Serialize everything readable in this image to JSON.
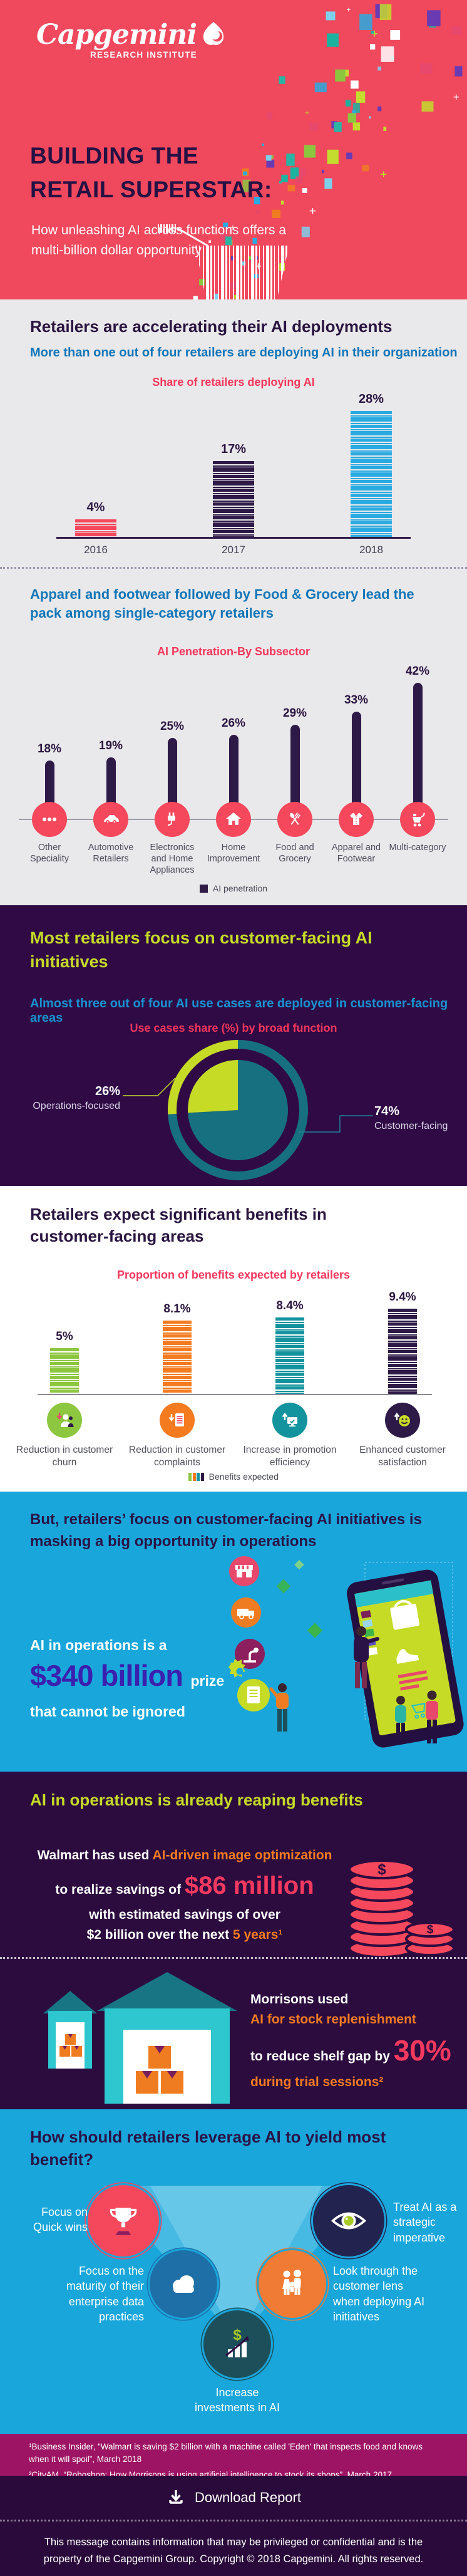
{
  "header": {
    "logo_brand": "Capgemini",
    "logo_sub": "RESEARCH INSTITUTE",
    "title_line1": "BUILDING THE",
    "title_line2": "RETAIL SUPERSTAR:",
    "subtitle": "How unleashing AI across functions offers a multi-billion dollar opportunity"
  },
  "section_deployments": {
    "title": "Retailers are accelerating their AI deployments",
    "subtitle": "More than one out of four retailers are deploying AI in their organization"
  },
  "section_subsector": {
    "title": "Apparel and footwear followed by Food & Grocery lead the pack among single-category retailers"
  },
  "section_focus": {
    "title": "Most retailers focus on customer-facing AI initiatives",
    "subtitle": "Almost three out of four AI use cases are deployed in customer-facing areas"
  },
  "section_benefits": {
    "title": "Retailers expect significant benefits in customer-facing areas"
  },
  "section_opportunity": {
    "title": "But, retailers’ focus on customer-facing AI initiatives is masking a big opportunity in operations",
    "line1": "AI in operations is a",
    "amount": "$340 billion",
    "amount_suffix": "prize",
    "line3": "that cannot be ignored"
  },
  "section_reaping": {
    "title": "AI in operations is already reaping benefits",
    "walmart": {
      "line1_white": "Walmart has used ",
      "line1_orange": "AI-driven image optimization",
      "line2_white": "to realize savings of ",
      "line2_big": "$86 million",
      "line3": "with estimated savings of over",
      "line4_white": "$2 billion over the next ",
      "line4_orange": "5 years¹"
    },
    "morrisons": {
      "line1": "Morrisons used",
      "line2": "AI for stock replenishment",
      "line3_white": "to reduce shelf gap by ",
      "line3_big": "30%",
      "line4": "during trial sessions²"
    }
  },
  "section_leverage": {
    "title": "How should retailers leverage AI to yield most benefit?",
    "items": [
      {
        "label": "Focus on Quick wins",
        "icon": "trophy-icon"
      },
      {
        "label": "Treat AI as a strategic imperative",
        "icon": "eye-icon"
      },
      {
        "label": "Focus on the maturity of their enterprise data practices",
        "icon": "cloud-icon"
      },
      {
        "label": "Look through the customer lens when deploying AI initiatives",
        "icon": "family-icon"
      },
      {
        "label": "Increase investments in AI",
        "icon": "investment-growth-icon"
      }
    ]
  },
  "footnotes": [
    "¹Business Insider, “Walmart is saving $2 billion with a machine called 'Eden' that inspects food and knows when it will spoil”, March 2018",
    "²CityAM, “Roboshop: How Morrisons is using artificial intelligence to stock its shops”, March 2017"
  ],
  "download": {
    "label": "Download Report"
  },
  "footer": {
    "text": "This message contains information that may be privileged or confidential and is the property of the Capgemini Group. Copyright © 2018 Capgemini. All rights reserved."
  },
  "colors": {
    "header_bg": "#F0485C",
    "accent_red": "#F6365C",
    "navy": "#2E1A47",
    "blue": "#1276B8",
    "lime": "#C6DB26",
    "teal": "#17707F",
    "cyan_bar": "#29ABE2",
    "blue_bg": "#19A6DB",
    "purple_bg": "#2F0A45",
    "dark_bg": "#2C0B3F",
    "magenta_bg": "#9D1464",
    "orange": "#F47B20",
    "indigo": "#3B1FAE"
  },
  "chart_data": [
    {
      "id": "share_of_retailers_deploying_ai",
      "type": "bar",
      "title": "Share of retailers deploying AI",
      "categories": [
        "2016",
        "2017",
        "2018"
      ],
      "values": [
        4,
        17,
        28
      ],
      "unit": "%",
      "value_labels": [
        "4%",
        "17%",
        "28%"
      ],
      "bar_colors": [
        "#F5485C",
        "#2E1A47",
        "#29ABE2"
      ],
      "ylim": [
        0,
        30
      ],
      "grid": false,
      "style": "barcode-stripes"
    },
    {
      "id": "ai_penetration_by_subsector",
      "type": "bar",
      "title": "AI Penetration-By Subsector",
      "categories": [
        "Other Speciality",
        "Automotive Retailers",
        "Electronics and Home Appliances",
        "Home Improvement",
        "Food and Grocery",
        "Apparel and Footwear",
        "Multi-category"
      ],
      "values": [
        18,
        19,
        25,
        26,
        29,
        33,
        42
      ],
      "unit": "%",
      "value_labels": [
        "18%",
        "19%",
        "25%",
        "26%",
        "29%",
        "33%",
        "42%"
      ],
      "bar_color": "#2E1A47",
      "legend": "AI penetration",
      "legend_position": "bottom",
      "icons": [
        "dots-icon",
        "car-icon",
        "plug-icon",
        "house-icon",
        "cutlery-icon",
        "shirt-icon",
        "trolley-icon"
      ],
      "ylim": [
        0,
        45
      ],
      "grid": false,
      "style": "lollipop"
    },
    {
      "id": "use_cases_share_by_broad_function",
      "type": "pie",
      "title": "Use cases share (%) by broad function",
      "labels": [
        "Operations-focused",
        "Customer-facing"
      ],
      "values": [
        26,
        74
      ],
      "value_labels": [
        "26%",
        "74%"
      ],
      "colors": [
        "#C6DB26",
        "#17707F"
      ],
      "style": "donut-with-inner-pie"
    },
    {
      "id": "proportion_of_benefits_expected",
      "type": "bar",
      "title": "Proportion of benefits expected by retailers",
      "categories": [
        "Reduction in customer churn",
        "Reduction in customer complaints",
        "Increase in promotion efficiency",
        "Enhanced customer satisfaction"
      ],
      "values": [
        5,
        8.1,
        8.4,
        9.4
      ],
      "unit": "%",
      "value_labels": [
        "5%",
        "8.1%",
        "8.4%",
        "9.4%"
      ],
      "bar_colors": [
        "#8DC63F",
        "#F47B20",
        "#13939E",
        "#2E1A47"
      ],
      "legend": "Benefits expected",
      "legend_position": "bottom",
      "icons": [
        "customer-churn-icon",
        "complaints-doc-icon",
        "promotion-screen-icon",
        "satisfaction-smiley-icon"
      ],
      "ylim": [
        0,
        10
      ],
      "grid": false,
      "style": "barcode-stripes"
    }
  ]
}
